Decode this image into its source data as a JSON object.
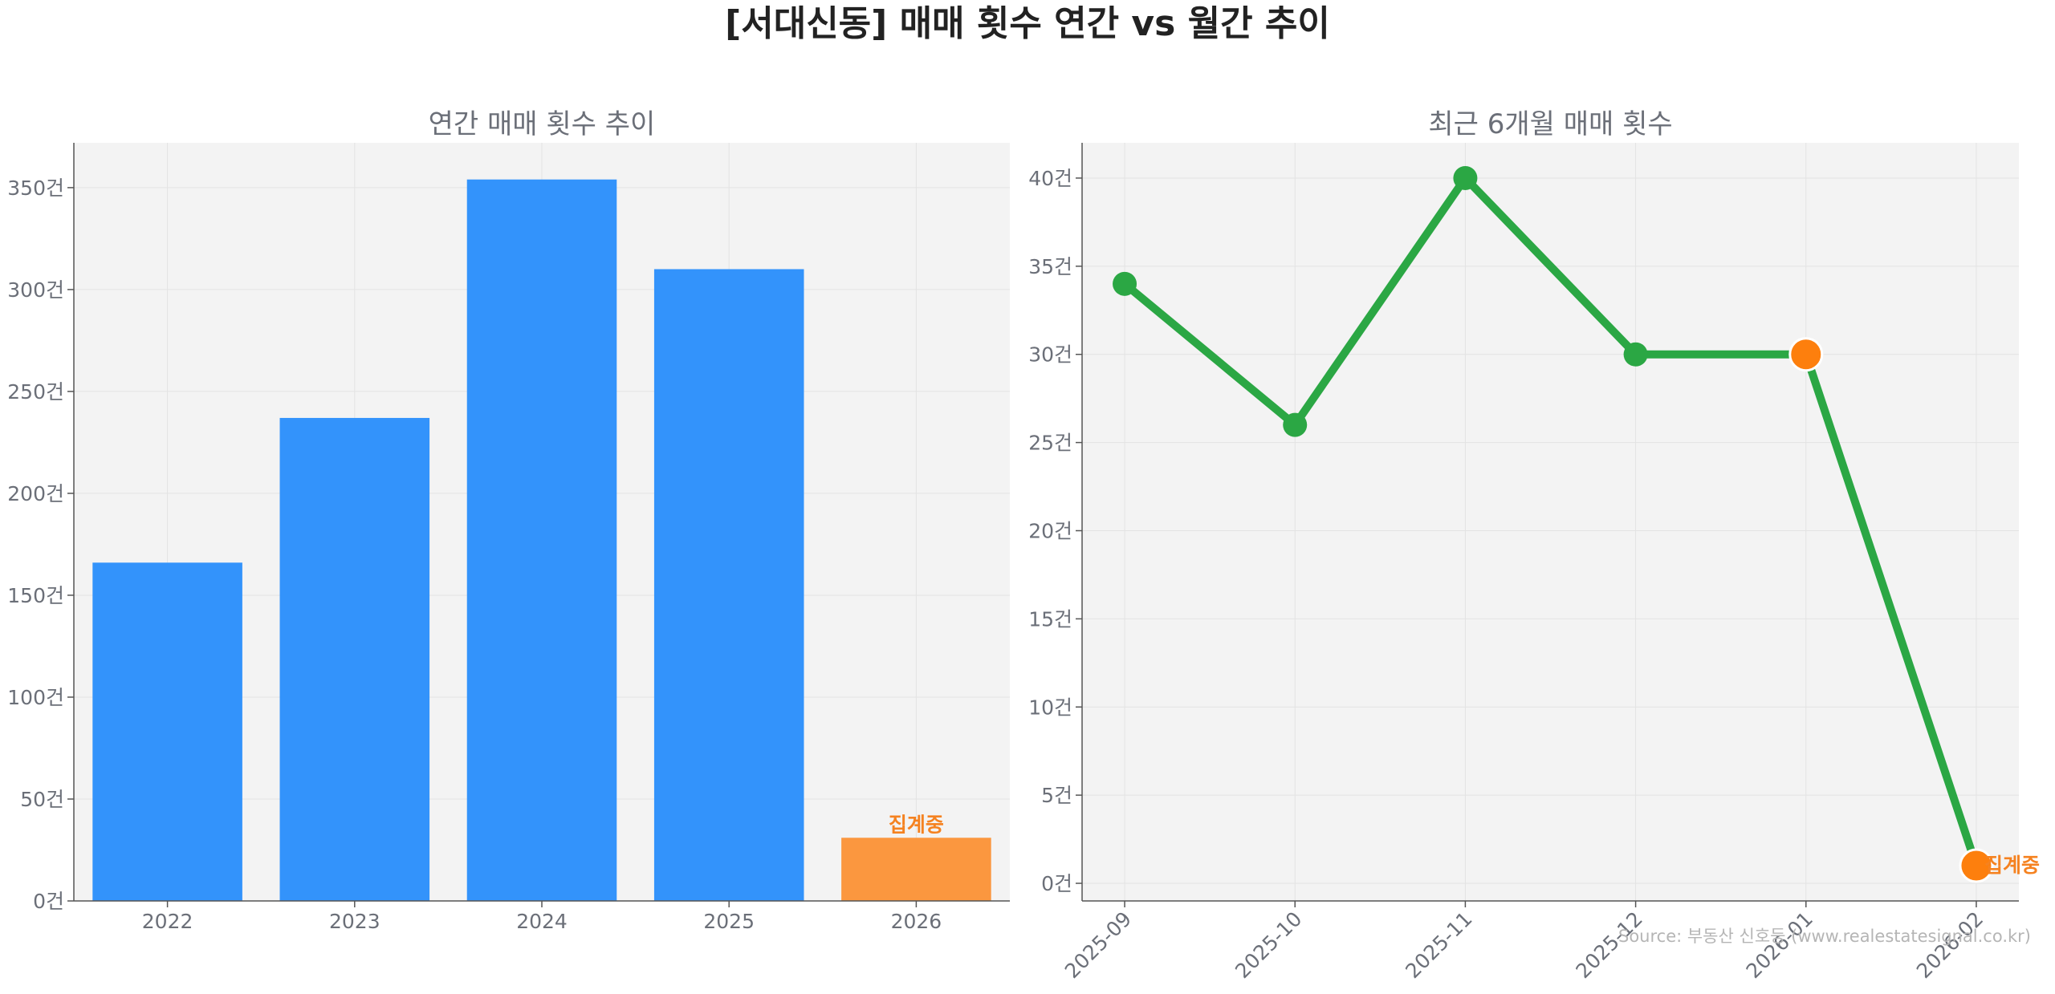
{
  "page": {
    "title": "[서대신동] 매매 횟수 연간 vs 월간 추이",
    "source": "Source: 부동산 신호등 (www.realestatesignal.co.kr)"
  },
  "colors": {
    "bar": "#3393FB",
    "bar_pending": "#FB973F",
    "line": "#2BA744",
    "point": "#2BA744",
    "point_highlight": "#FD7F0D",
    "pending_text": "#F58220",
    "panel_bg": "#F3F3F3",
    "grid": "#E3E3E3",
    "axis_text": "#6B6F78",
    "title_text": "#222222"
  },
  "chart_data": [
    {
      "type": "bar",
      "title": "연간 매매 횟수 추이",
      "categories": [
        "2022",
        "2023",
        "2024",
        "2025",
        "2026"
      ],
      "values": [
        166,
        237,
        354,
        310,
        31
      ],
      "pending_category": "2026",
      "annotations": [
        {
          "category": "2026",
          "text": "집계중"
        }
      ],
      "ylim": [
        0,
        372
      ],
      "yticks": [
        0,
        50,
        100,
        150,
        200,
        250,
        300,
        350
      ],
      "tick_suffix": "건",
      "grid": true
    },
    {
      "type": "line",
      "title": "최근 6개월 매매 횟수",
      "x": [
        "2025-09",
        "2025-10",
        "2025-11",
        "2025-12",
        "2026-01",
        "2026-02"
      ],
      "values": [
        34,
        26,
        40,
        30,
        30,
        1
      ],
      "highlight_points": [
        "2026-01",
        "2026-02"
      ],
      "annotations": [
        {
          "x": "2026-02",
          "text": "집계중"
        }
      ],
      "ylim": [
        -1,
        42
      ],
      "yticks": [
        0,
        5,
        10,
        15,
        20,
        25,
        30,
        35,
        40
      ],
      "tick_suffix": "건",
      "grid": true
    }
  ]
}
